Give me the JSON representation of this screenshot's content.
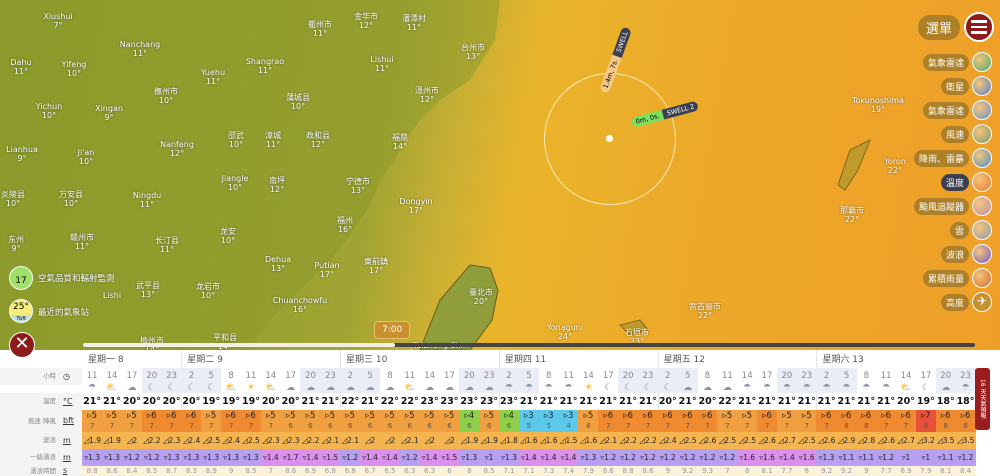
{
  "menu": {
    "label": "選單"
  },
  "layers": [
    {
      "label": "氣象雷達",
      "color": "#4aa86a"
    },
    {
      "label": "衛星",
      "color": "#5a80c0"
    },
    {
      "label": "氣象雷達",
      "color": "#6a90c8"
    },
    {
      "label": "風速",
      "color": "#7a9a6a"
    },
    {
      "label": "降雨、雷暴",
      "color": "#4a90c8"
    },
    {
      "label": "溫度",
      "color": "#e8782a",
      "active": true
    },
    {
      "label": "颱風追蹤器",
      "color": "#c090b0"
    },
    {
      "label": "雲",
      "color": "#909aa8"
    },
    {
      "label": "波浪",
      "color": "#7a5ac8"
    },
    {
      "label": "累積雨量",
      "color": "#d86a2a"
    },
    {
      "label": "高度",
      "icon": "airplane-icon"
    }
  ],
  "map_labels": [
    {
      "name": "Xiushui",
      "temp": "7°"
    },
    {
      "name": "Nanchang",
      "temp": "11°"
    },
    {
      "name": "Dahu",
      "temp": "11°"
    },
    {
      "name": "Yifeng",
      "temp": "10°"
    },
    {
      "name": "Yichun",
      "temp": "10°"
    },
    {
      "name": "Xingan",
      "temp": "9°"
    },
    {
      "name": "撫州市",
      "temp": "10°"
    },
    {
      "name": "Yuehu",
      "temp": "11°"
    },
    {
      "name": "Lianhua",
      "temp": "9°"
    },
    {
      "name": "Ji'an",
      "temp": "10°"
    },
    {
      "name": "Nanfeng",
      "temp": "12°"
    },
    {
      "name": "炎陵县",
      "temp": "10°"
    },
    {
      "name": "万安县",
      "temp": "10°"
    },
    {
      "name": "Ningdu",
      "temp": "11°"
    },
    {
      "name": "东州",
      "temp": "9°"
    },
    {
      "name": "赣州市",
      "temp": "11°"
    },
    {
      "name": "长汀县",
      "temp": "11°"
    },
    {
      "name": "龙安",
      "temp": "10°"
    },
    {
      "name": "衢州市",
      "temp": "11°"
    },
    {
      "name": "金华市",
      "temp": "12°"
    },
    {
      "name": "潘潭村",
      "temp": "11°"
    },
    {
      "name": "台州市",
      "temp": "13°"
    },
    {
      "name": "Shangrao",
      "temp": "11°"
    },
    {
      "name": "Lishui",
      "temp": "11°"
    },
    {
      "name": "蒲城县",
      "temp": "10°"
    },
    {
      "name": "溫州市",
      "temp": "12°"
    },
    {
      "name": "邵武",
      "temp": "10°"
    },
    {
      "name": "漳城",
      "temp": "11°"
    },
    {
      "name": "政和县",
      "temp": "12°"
    },
    {
      "name": "福鼎",
      "temp": "14°"
    },
    {
      "name": "Jiangle",
      "temp": "10°"
    },
    {
      "name": "南坪",
      "temp": "12°"
    },
    {
      "name": "宁德市",
      "temp": "13°"
    },
    {
      "name": "Dongyin",
      "temp": "17°"
    },
    {
      "name": "福州",
      "temp": "16°"
    },
    {
      "name": "Dehua",
      "temp": "13°"
    },
    {
      "name": "Putian",
      "temp": "17°"
    },
    {
      "name": "東前鎮",
      "temp": "17°"
    },
    {
      "name": "龙岩市",
      "temp": "10°"
    },
    {
      "name": "武平县",
      "temp": "13°"
    },
    {
      "name": "Chuanchowfu",
      "temp": "16°"
    },
    {
      "name": "平和县",
      "temp": "14°"
    },
    {
      "name": "梅州市",
      "temp": "14°"
    },
    {
      "name": "Lishi",
      "temp": ""
    },
    {
      "name": "臺北市",
      "temp": "20°"
    },
    {
      "name": "Taizhong Shi",
      "temp": ""
    },
    {
      "name": "Yonaguni",
      "temp": "24°"
    },
    {
      "name": "石垣市",
      "temp": "23°"
    },
    {
      "name": "宮古島市",
      "temp": "22°"
    },
    {
      "name": "那霸市",
      "temp": "22°"
    },
    {
      "name": "Yoron",
      "temp": "22°"
    },
    {
      "name": "Tokunoshima",
      "temp": "19°"
    }
  ],
  "swell": {
    "swell1_value": "1.4m, 7s.",
    "swell1_label": "SWELL",
    "swell2_value": "0m, 0s.",
    "swell2_label": "SWELL 2"
  },
  "widgets": {
    "air_quality_value": "17",
    "air_quality_label": "空氣品質和輻射監測",
    "weather_value": "25°",
    "weather_sub": "7bft",
    "weather_label": "最近的氣象站"
  },
  "timeline": {
    "time": "7:00",
    "progress": 0.35
  },
  "forecast": {
    "row_labels": [
      {
        "name": "小時",
        "unit": "clock-icon"
      },
      {
        "name": "溫度",
        "unit": "°C"
      },
      {
        "name": "風速 陣風",
        "unit": "bft"
      },
      {
        "name": "波浪",
        "unit": "m"
      },
      {
        "name": "一級湧浪",
        "unit": "m"
      },
      {
        "name": "湧浪時間",
        "unit": "s"
      }
    ],
    "more_label": "16 天天氣預報",
    "days": [
      {
        "label": "星期一 8",
        "hours": [
          11,
          14,
          17,
          20,
          23
        ],
        "icons": [
          "rain",
          "partly",
          "cloudy",
          "night",
          "night"
        ],
        "temp": [
          21,
          21,
          20,
          20,
          20
        ],
        "wind": [
          5,
          5,
          5,
          6,
          6
        ],
        "gust": [
          7,
          7,
          7,
          7,
          7
        ],
        "wave": [
          1.9,
          1.9,
          2,
          2.2,
          2.3
        ],
        "swell": [
          1.3,
          1.3,
          1.2,
          1.2,
          1.3
        ],
        "period": [
          8.8,
          8.6,
          8.4,
          8.5,
          8.7
        ]
      },
      {
        "label": "星期二 9",
        "hours": [
          2,
          5,
          8,
          11,
          14,
          17,
          20,
          23
        ],
        "icons": [
          "night",
          "night",
          "partly",
          "sunny",
          "partly",
          "cloudy",
          "cloudy",
          "cloudy"
        ],
        "temp": [
          20,
          19,
          19,
          19,
          20,
          20,
          21,
          21
        ],
        "wind": [
          6,
          5,
          6,
          6,
          5,
          5,
          5,
          5
        ],
        "gust": [
          7,
          7,
          7,
          7,
          7,
          6,
          6,
          6
        ],
        "wave": [
          2.4,
          2.5,
          2.4,
          2.5,
          2.3,
          2.3,
          2.2,
          2.1
        ],
        "swell": [
          1.3,
          1.3,
          1.3,
          1.3,
          1.4,
          1.7,
          1.4,
          1.5
        ],
        "period": [
          8.3,
          8.9,
          9,
          8.5,
          7,
          8.6,
          6.9,
          6.8
        ]
      },
      {
        "label": "星期三 10",
        "hours": [
          2,
          5,
          8,
          11,
          14,
          17,
          20,
          23
        ],
        "icons": [
          "cloudy",
          "cloudy",
          "cloudy",
          "partly",
          "cloudy",
          "cloudy",
          "cloudy",
          "cloudy"
        ],
        "temp": [
          22,
          21,
          22,
          22,
          23,
          23,
          23,
          23
        ],
        "wind": [
          5,
          5,
          5,
          5,
          5,
          5,
          4,
          5
        ],
        "gust": [
          6,
          6,
          6,
          6,
          6,
          6,
          6,
          6
        ],
        "wave": [
          2.1,
          2,
          2,
          2.1,
          2,
          2,
          1.9,
          1.9
        ],
        "swell": [
          1.2,
          1.4,
          1.4,
          1.2,
          1.4,
          1.5,
          1.3,
          1
        ],
        "period": [
          6.8,
          6.7,
          6.5,
          6.3,
          6.3,
          6,
          8,
          8.5
        ]
      },
      {
        "label": "星期四 11",
        "hours": [
          2,
          5,
          8,
          11,
          14,
          17,
          20,
          23
        ],
        "icons": [
          "rain",
          "rain",
          "rain",
          "rain",
          "sunny",
          "night",
          "night",
          "night"
        ],
        "temp": [
          23,
          21,
          21,
          21,
          21,
          21,
          21,
          21
        ],
        "wind": [
          4,
          3,
          3,
          3,
          5,
          6,
          6,
          6
        ],
        "gust": [
          6,
          5,
          5,
          4,
          6,
          7,
          7,
          7
        ],
        "wave": [
          1.8,
          1.6,
          1.6,
          1.5,
          1.6,
          2.1,
          2.2,
          2.2
        ],
        "swell": [
          1.3,
          1.4,
          1.4,
          1.4,
          1.3,
          1.2,
          1.2,
          1.2
        ],
        "period": [
          7.1,
          7.1,
          7.3,
          7.4,
          7.9,
          8.6,
          8.8,
          8.6
        ]
      },
      {
        "label": "星期五 12",
        "hours": [
          2,
          5,
          8,
          11,
          14,
          17,
          20,
          23
        ],
        "icons": [
          "night",
          "cloudy",
          "cloudy",
          "cloudy",
          "rain",
          "rain",
          "rain",
          "rain"
        ],
        "temp": [
          20,
          21,
          20,
          22,
          21,
          21,
          21,
          21
        ],
        "wind": [
          6,
          6,
          6,
          5,
          5,
          6,
          5,
          5
        ],
        "gust": [
          7,
          7,
          7,
          7,
          7,
          7,
          7,
          7
        ],
        "wave": [
          2.4,
          2.5,
          2.6,
          2.5,
          2.5,
          2.6,
          2.7,
          2.5
        ],
        "swell": [
          1.2,
          1.2,
          1.2,
          1.2,
          1.6,
          1.6,
          1.4,
          1.6
        ],
        "period": [
          9,
          9.2,
          9.3,
          7,
          8,
          8.1,
          7.7,
          8
        ]
      },
      {
        "label": "星期六 13",
        "hours": [
          2,
          5,
          8,
          11,
          14,
          17,
          20,
          23
        ],
        "icons": [
          "rain",
          "rain",
          "rain",
          "rain",
          "partly",
          "night",
          "cloudy",
          "rain"
        ],
        "temp": [
          21,
          21,
          21,
          21,
          20,
          19,
          18,
          18
        ],
        "wind": [
          6,
          6,
          6,
          6,
          6,
          7,
          6,
          6
        ],
        "gust": [
          7,
          8,
          8,
          7,
          7,
          8,
          8,
          8
        ],
        "wave": [
          2.6,
          2.9,
          2.8,
          2.6,
          2.7,
          3.2,
          3.5,
          3.5
        ],
        "swell": [
          1.3,
          1.1,
          1.1,
          1.2,
          1,
          1,
          1.1,
          1.2
        ],
        "period": [
          9.2,
          9.2,
          9,
          7.7,
          6.9,
          7.9,
          8.1,
          8.4
        ]
      }
    ],
    "colors": {
      "bft3": "#5cc8ea",
      "bft4": "#8fd04a",
      "bft5": "#f0a040",
      "bft6": "#f08a30",
      "bft7": "#e8503a",
      "wave": "#f4b450",
      "swell": "#b7a0f2",
      "swell_high": "#dc90ee",
      "period": "#fcf2da",
      "night": "#eaecf6"
    }
  }
}
